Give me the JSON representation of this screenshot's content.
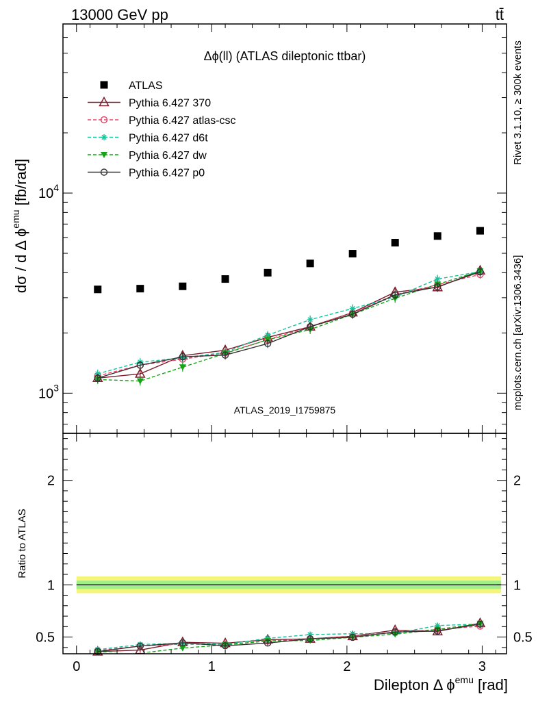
{
  "header": {
    "left": "13000 GeV pp",
    "right": "tt̄"
  },
  "side_labels": {
    "rivet": "Rivet 3.1.10, ≥ 300k events",
    "mcplots": "mcplots.cern.ch [arXiv:1306.3436]"
  },
  "watermark": "ATLAS_2019_I1759875",
  "chart_data": {
    "type": "scatter",
    "title": "Δϕ(ll) (ATLAS dileptonic ttbar)",
    "xlabel": "Dilepton Δ ϕ^emu [rad]",
    "ylabel": "dσ / d Δ ϕ^emu [fb/rad]",
    "ratio_ylabel": "Ratio to ATLAS",
    "xlim": [
      -0.1,
      3.18
    ],
    "ylim": [
      630,
      70000
    ],
    "yscale": "log",
    "ratio_ylim": [
      0.34,
      2.45
    ],
    "x_ticks": [
      0,
      1,
      2,
      3
    ],
    "y_tick_labels": [
      "10^3",
      "10^4"
    ],
    "ratio_ticks": [
      0.5,
      1,
      2
    ],
    "x": [
      0.157,
      0.471,
      0.785,
      1.1,
      1.414,
      1.728,
      2.042,
      2.356,
      2.67,
      2.985
    ],
    "legend_position": "top-left",
    "series": [
      {
        "name": "ATLAS",
        "color": "#000000",
        "marker": "square",
        "dash": "none",
        "values": [
          3300,
          3330,
          3420,
          3720,
          4000,
          4450,
          4980,
          5650,
          6100,
          6480
        ]
      },
      {
        "name": "Pythia 6.427 370",
        "color": "#7b1c2c",
        "marker": "triangle-open",
        "dash": "solid",
        "values": [
          1190,
          1250,
          1540,
          1640,
          1900,
          2150,
          2530,
          3200,
          3380,
          4100
        ]
      },
      {
        "name": "Pythia 6.427 atlas-csc",
        "color": "#e8456a",
        "marker": "circle-open",
        "dash": "dashed",
        "values": [
          1220,
          1380,
          1480,
          1590,
          1850,
          2150,
          2520,
          3100,
          3480,
          3920
        ]
      },
      {
        "name": "Pythia 6.427 d6t",
        "color": "#19c29b",
        "marker": "star",
        "dash": "dashed",
        "values": [
          1250,
          1430,
          1500,
          1600,
          1950,
          2330,
          2650,
          3020,
          3720,
          4050
        ]
      },
      {
        "name": "Pythia 6.427 dw",
        "color": "#16a316",
        "marker": "triangle-down",
        "dash": "dashed",
        "values": [
          1170,
          1150,
          1350,
          1580,
          1850,
          2080,
          2480,
          2980,
          3500,
          4080
        ]
      },
      {
        "name": "Pythia 6.427 p0",
        "color": "#333333",
        "marker": "circle-open",
        "dash": "solid",
        "values": [
          1190,
          1380,
          1520,
          1550,
          1770,
          2150,
          2480,
          3100,
          3400,
          4040
        ]
      }
    ]
  }
}
